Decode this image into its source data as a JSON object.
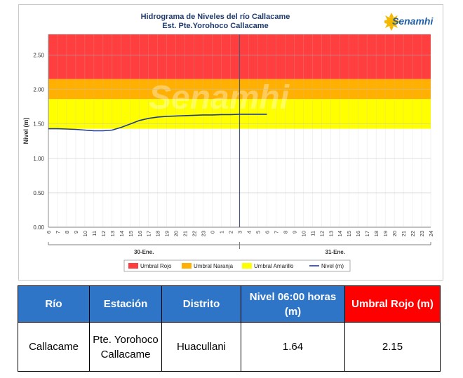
{
  "chart_data": {
    "type": "line",
    "title": "Hidrograma de Niveles del río Callacame",
    "subtitle": "Est. Pte.Yorohoco Callacame",
    "ylabel": "Nivel (m)",
    "ylim": [
      0,
      2.8
    ],
    "yticks": [
      "0.00",
      "0.50",
      "1.00",
      "1.50",
      "2.00",
      "2.50"
    ],
    "xlim": [
      6,
      24
    ],
    "xticks_day1": [
      "6",
      "7",
      "8",
      "9",
      "10",
      "11",
      "12",
      "13",
      "14",
      "15",
      "16",
      "17",
      "18",
      "19",
      "20",
      "21",
      "22",
      "23",
      "0",
      "1",
      "2",
      "3"
    ],
    "xticks_day2": [
      "4",
      "5",
      "6",
      "7",
      "8",
      "9",
      "10",
      "11",
      "12",
      "13",
      "14",
      "15",
      "16",
      "17",
      "18",
      "19",
      "20",
      "21",
      "22",
      "23",
      "24"
    ],
    "day_labels": [
      "30-Ene.",
      "31-Ene."
    ],
    "bands": [
      {
        "name": "Umbral Rojo",
        "from": 2.15,
        "to": 2.8,
        "color": "#ff3f3f"
      },
      {
        "name": "Umbral Naranja",
        "from": 1.86,
        "to": 2.15,
        "color": "#ffb000"
      },
      {
        "name": "Umbral Amarillo",
        "from": 1.43,
        "to": 1.86,
        "color": "#ffff00"
      }
    ],
    "series": [
      {
        "name": "Nivel (m)",
        "color": "#1f3b8f",
        "points": [
          {
            "t": 0,
            "y": 1.43
          },
          {
            "t": 1,
            "y": 1.43
          },
          {
            "t": 2,
            "y": 1.425
          },
          {
            "t": 3,
            "y": 1.42
          },
          {
            "t": 4,
            "y": 1.41
          },
          {
            "t": 5,
            "y": 1.4
          },
          {
            "t": 6,
            "y": 1.4
          },
          {
            "t": 7,
            "y": 1.41
          },
          {
            "t": 8,
            "y": 1.45
          },
          {
            "t": 9,
            "y": 1.5
          },
          {
            "t": 10,
            "y": 1.55
          },
          {
            "t": 11,
            "y": 1.58
          },
          {
            "t": 12,
            "y": 1.6
          },
          {
            "t": 13,
            "y": 1.61
          },
          {
            "t": 14,
            "y": 1.615
          },
          {
            "t": 15,
            "y": 1.62
          },
          {
            "t": 16,
            "y": 1.625
          },
          {
            "t": 17,
            "y": 1.63
          },
          {
            "t": 18,
            "y": 1.63
          },
          {
            "t": 19,
            "y": 1.635
          },
          {
            "t": 20,
            "y": 1.635
          },
          {
            "t": 21,
            "y": 1.64
          },
          {
            "t": 22,
            "y": 1.64
          },
          {
            "t": 23,
            "y": 1.64
          },
          {
            "t": 24,
            "y": 1.64
          }
        ]
      }
    ],
    "current_time_index": 21,
    "legend_position": "bottom",
    "colors": {
      "grid": "#c0c0c0",
      "axis": "#808080",
      "title": "#1f3b6e"
    }
  },
  "logo": {
    "name": "Senamhi",
    "watermark": "Senamhi"
  },
  "table": {
    "headers": [
      "Río",
      "Estación",
      "Distrito",
      "Nivel  06:00 horas (m)",
      "Umbral Rojo (m)"
    ],
    "header_colors": [
      "#2e75c8",
      "#2e75c8",
      "#2e75c8",
      "#2e75c8",
      "#ff0000"
    ],
    "row": [
      "Callacame",
      "Pte. Yorohoco Callacame",
      "Huacullani",
      "1.64",
      "2.15"
    ]
  }
}
